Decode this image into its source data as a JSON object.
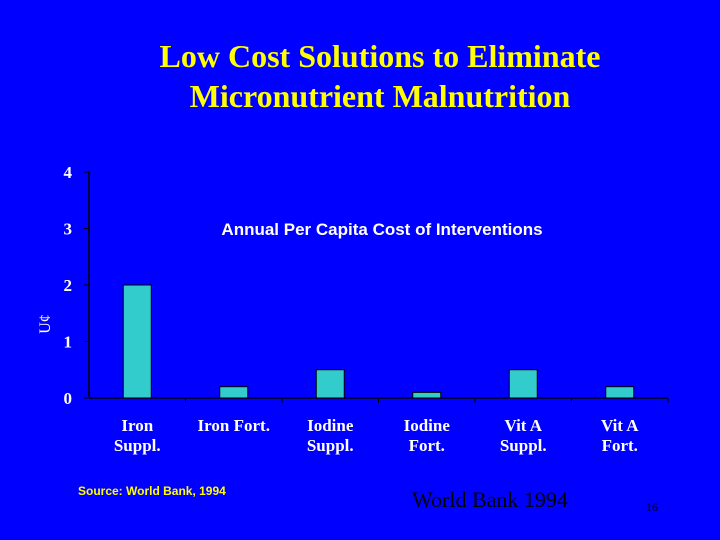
{
  "slide": {
    "title_line1": "Low Cost Solutions to Eliminate",
    "title_line2": "Micronutrient Malnutrition",
    "source_note": "Source: World Bank, 1994",
    "footer_source": "World Bank 1994",
    "slide_number": "16"
  },
  "colors": {
    "background": "#0000ff",
    "title": "#ffff00",
    "bar": "#33cccc",
    "axis_text": "#ffffff",
    "chart_title": "#ffffff"
  },
  "chart_data": {
    "type": "bar",
    "title": "Annual Per Capita Cost of Interventions",
    "ylabel": "U¢",
    "ylim": [
      0,
      4
    ],
    "yticks": [
      0,
      1,
      2,
      3,
      4
    ],
    "grid": false,
    "categories": [
      [
        "Iron",
        "Suppl."
      ],
      [
        "Iron Fort."
      ],
      [
        "Iodine",
        "Suppl."
      ],
      [
        "Iodine",
        "Fort."
      ],
      [
        "Vit A",
        "Suppl."
      ],
      [
        "Vit A",
        "Fort."
      ]
    ],
    "values": [
      2.0,
      0.2,
      0.5,
      0.1,
      0.5,
      0.2
    ]
  }
}
